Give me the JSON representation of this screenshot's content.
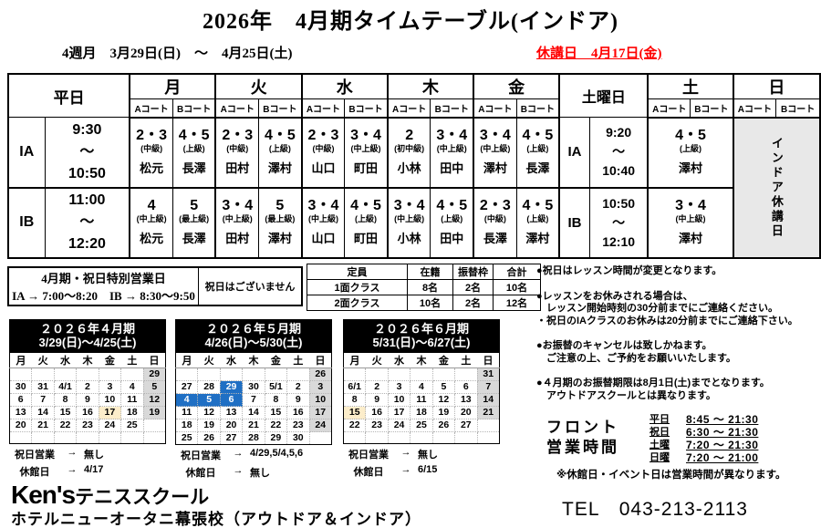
{
  "title": "2026年　4月期タイムテーブル(インドア)",
  "period": "4週月　3月29日(日)　～　4月25日(土)",
  "closed_notice": "休講日　4月17日(金)",
  "colors": {
    "accent_red": "#ff0000",
    "calendar_title_bg": "#000000",
    "sunday_column_bg": "#d9d9d9",
    "closed_day_bg": "#fcedca",
    "holiday_blue": "#1f6fc4",
    "indoor_closed_bg": "#e8e8e8"
  },
  "timetable": {
    "corner_label": "平日",
    "day_headers": [
      "月",
      "火",
      "水",
      "木",
      "金"
    ],
    "sat_section_label": "土曜日",
    "sat_header": "土",
    "sun_header": "日",
    "court_labels": [
      "Aコート",
      "Bコート"
    ],
    "sunday_closed_vertical": "インドア休講日",
    "rows": [
      {
        "label": "IA",
        "time": [
          "9:30",
          "～",
          "10:50"
        ],
        "classes": [
          {
            "level": "2・3",
            "grade": "(中級)",
            "coach": "松元"
          },
          {
            "level": "4・5",
            "grade": "(上級)",
            "coach": "長澤"
          },
          {
            "level": "2・3",
            "grade": "(中級)",
            "coach": "田村"
          },
          {
            "level": "4・5",
            "grade": "(上級)",
            "coach": "澤村"
          },
          {
            "level": "2・3",
            "grade": "(中級)",
            "coach": "山口"
          },
          {
            "level": "3・4",
            "grade": "(中上級)",
            "coach": "町田"
          },
          {
            "level": "2",
            "grade": "(初中級)",
            "coach": "小林"
          },
          {
            "level": "3・4",
            "grade": "(中上級)",
            "coach": "田中"
          },
          {
            "level": "3・4",
            "grade": "(中上級)",
            "coach": "澤村"
          },
          {
            "level": "4・5",
            "grade": "(上級)",
            "coach": "長澤"
          }
        ],
        "sat_label": "IA",
        "sat_time": [
          "9:20",
          "～",
          "10:40"
        ],
        "sat_class": {
          "level": "4・5",
          "grade": "(上級)",
          "coach": "澤村"
        }
      },
      {
        "label": "IB",
        "time": [
          "11:00",
          "～",
          "12:20"
        ],
        "classes": [
          {
            "level": "4",
            "grade": "(中上級)",
            "coach": "松元"
          },
          {
            "level": "5",
            "grade": "(最上級)",
            "coach": "長澤"
          },
          {
            "level": "3・4",
            "grade": "(中上級)",
            "coach": "田村"
          },
          {
            "level": "5",
            "grade": "(最上級)",
            "coach": "澤村"
          },
          {
            "level": "3・4",
            "grade": "(中上級)",
            "coach": "山口"
          },
          {
            "level": "4・5",
            "grade": "(上級)",
            "coach": "町田"
          },
          {
            "level": "3・4",
            "grade": "(中上級)",
            "coach": "小林"
          },
          {
            "level": "4・5",
            "grade": "(上級)",
            "coach": "田中"
          },
          {
            "level": "2・3",
            "grade": "(中級)",
            "coach": "長澤"
          },
          {
            "level": "4・5",
            "grade": "(上級)",
            "coach": "澤村"
          }
        ],
        "sat_label": "IB",
        "sat_time": [
          "10:50",
          "～",
          "12:10"
        ],
        "sat_class": {
          "level": "3・4",
          "grade": "(中上級)",
          "coach": "澤村"
        }
      }
    ]
  },
  "special": {
    "title": "4月期・祝日特別営業日",
    "detail": "IA → 7:00～8:20　IB → 8:30～9:50",
    "holiday_note": "祝日はございません"
  },
  "capacity": {
    "headers": [
      "定員",
      "在籍",
      "振替枠",
      "合計"
    ],
    "rows": [
      [
        "1面クラス",
        "8名",
        "2名",
        "10名"
      ],
      [
        "2面クラス",
        "10名",
        "2名",
        "12名"
      ]
    ]
  },
  "notes": [
    "●祝日はレッスン時間が変更となります。",
    "",
    "●レッスンをお休みされる場合は、",
    "　レッスン開始時刻の30分前までにご連絡ください。",
    "・祝日のIAクラスのお休みは20分前までにご連絡下さい。",
    "",
    "●お振替のキャンセルは致しかねます。",
    "　ご注意の上、ご予約をお願いいたします。",
    "",
    "●４月期のお振替期限は8月1日(土)までとなります。",
    "　アウトドアスクールとは異なります。"
  ],
  "calendars": [
    {
      "title_line1": "２０２６年４月期",
      "title_line2": "3/29(日)～4/25(土)",
      "day_headers": [
        "月",
        "火",
        "水",
        "木",
        "金",
        "土",
        "日"
      ],
      "grid": [
        [
          "",
          "",
          "",
          "",
          "",
          "",
          "29"
        ],
        [
          "30",
          "31",
          "4/1",
          "2",
          "3",
          "4",
          "5"
        ],
        [
          "6",
          "7",
          "8",
          "9",
          "10",
          "11",
          "12"
        ],
        [
          "13",
          "14",
          "15",
          "16",
          "17",
          "18",
          "19"
        ],
        [
          "20",
          "21",
          "22",
          "23",
          "24",
          "25",
          ""
        ],
        [
          "",
          "",
          "",
          "",
          "",
          "",
          ""
        ]
      ],
      "marks": [
        {
          "r": 3,
          "c": 4,
          "type": "cream"
        }
      ],
      "holiday_line": {
        "label": "祝日営業",
        "arrow": "→",
        "value": "無し"
      },
      "closed_line": {
        "label": "休館日",
        "arrow": "→",
        "value": "4/17"
      }
    },
    {
      "title_line1": "２０２６年５月期",
      "title_line2": "4/26(日)～5/30(土)",
      "day_headers": [
        "月",
        "火",
        "水",
        "木",
        "金",
        "土",
        "日"
      ],
      "grid": [
        [
          "",
          "",
          "",
          "",
          "",
          "",
          "26"
        ],
        [
          "27",
          "28",
          "29",
          "30",
          "5/1",
          "2",
          "3"
        ],
        [
          "4",
          "5",
          "6",
          "7",
          "8",
          "9",
          "10"
        ],
        [
          "11",
          "12",
          "13",
          "14",
          "15",
          "16",
          "17"
        ],
        [
          "18",
          "19",
          "20",
          "21",
          "22",
          "23",
          "24"
        ],
        [
          "25",
          "26",
          "27",
          "28",
          "29",
          "30",
          ""
        ]
      ],
      "marks": [
        {
          "r": 1,
          "c": 2,
          "type": "blue"
        },
        {
          "r": 2,
          "c": 0,
          "type": "blue"
        },
        {
          "r": 2,
          "c": 1,
          "type": "blue"
        },
        {
          "r": 2,
          "c": 2,
          "type": "blue"
        }
      ],
      "holiday_line": {
        "label": "祝日営業",
        "arrow": "→",
        "value": "4/29,5/4,5,6"
      },
      "closed_line": {
        "label": "休館日",
        "arrow": "→",
        "value": "無し"
      }
    },
    {
      "title_line1": "２０２６年６月期",
      "title_line2": "5/31(日)～6/27(土)",
      "day_headers": [
        "月",
        "火",
        "水",
        "木",
        "金",
        "土",
        "日"
      ],
      "grid": [
        [
          "",
          "",
          "",
          "",
          "",
          "",
          "31"
        ],
        [
          "6/1",
          "2",
          "3",
          "4",
          "5",
          "6",
          "7"
        ],
        [
          "8",
          "9",
          "10",
          "11",
          "12",
          "13",
          "14"
        ],
        [
          "15",
          "16",
          "17",
          "18",
          "19",
          "20",
          "21"
        ],
        [
          "22",
          "23",
          "24",
          "25",
          "26",
          "27",
          ""
        ],
        [
          "",
          "",
          "",
          "",
          "",
          "",
          ""
        ]
      ],
      "marks": [
        {
          "r": 3,
          "c": 0,
          "type": "cream"
        }
      ],
      "holiday_line": {
        "label": "祝日営業",
        "arrow": "→",
        "value": "無し"
      },
      "closed_line": {
        "label": "休館日",
        "arrow": "→",
        "value": "6/15"
      }
    }
  ],
  "front_desk": {
    "label_line1": "フロント",
    "label_line2": "営業時間",
    "hours": [
      [
        "平日",
        "8:45 ～ 21:30"
      ],
      [
        "祝日",
        "6:30 ～ 21:30"
      ],
      [
        "土曜",
        "7:20 ～ 21:30"
      ],
      [
        "日曜",
        "7:20 ～ 21:00"
      ]
    ],
    "note": "※休館日・イベント日は営業時間が異なります。"
  },
  "footer": {
    "brand_mark": "Ken's",
    "brand_rest": "テニススクール",
    "school": "ホテルニューオータニ幕張校（アウトドア＆インドア）",
    "tel": "TEL　043-213-2113"
  }
}
